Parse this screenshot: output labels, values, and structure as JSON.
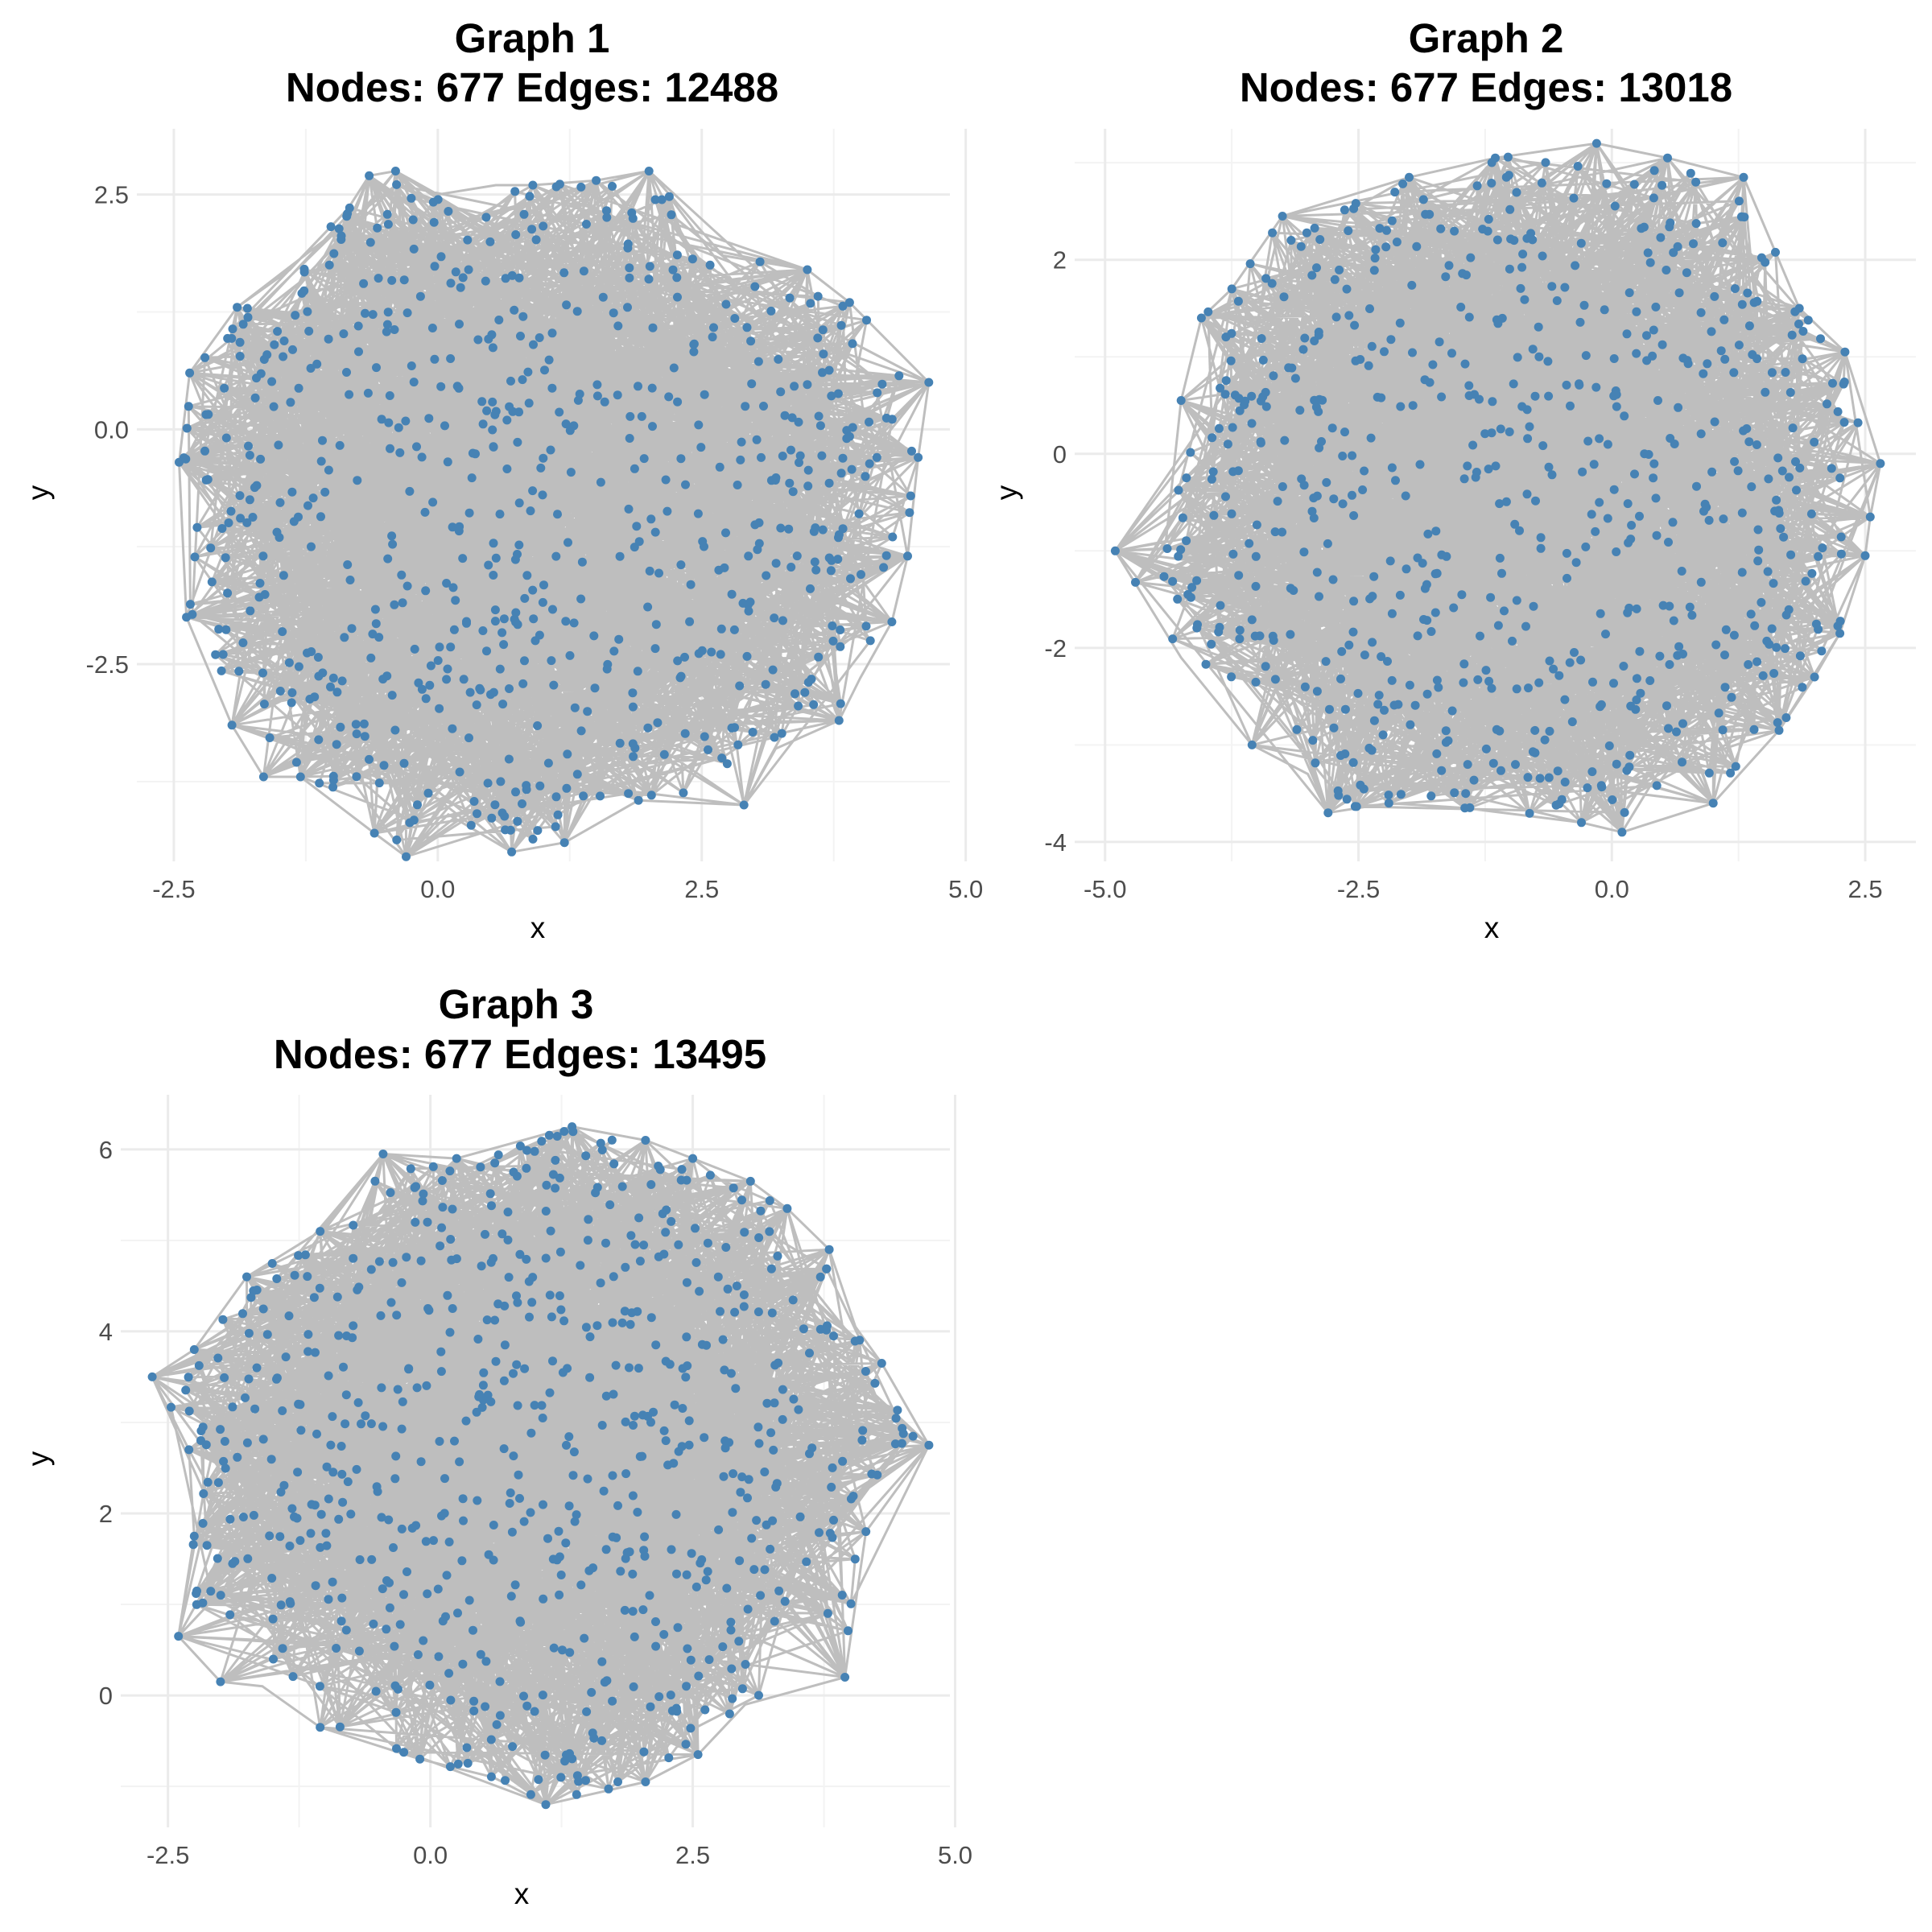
{
  "colors": {
    "edge": "#bebebe",
    "node": "#4682b4",
    "grid_major": "#ebebeb",
    "grid_minor": "#f3f3f3",
    "tick_text": "#4d4d4d",
    "title_text": "#000000"
  },
  "chart_data": [
    {
      "type": "scatter",
      "subtype": "network-graph",
      "title": "Graph 1",
      "subtitle": "Nodes: 677 Edges: 12488",
      "nodes": 677,
      "edges": 12488,
      "xlabel": "x",
      "ylabel": "y",
      "xlim": [
        -2.85,
        4.85
      ],
      "ylim": [
        -4.6,
        3.2
      ],
      "xticks": [
        -2.5,
        0.0,
        2.5,
        5.0
      ],
      "xtick_labels": [
        "-2.5",
        "0.0",
        "2.5",
        "5.0"
      ],
      "yticks": [
        -2.5,
        0.0,
        2.5
      ],
      "ytick_labels": [
        "-2.5",
        "0.0",
        "2.5"
      ],
      "grid": true,
      "hull": [
        [
          -2.45,
          -0.35
        ],
        [
          -2.38,
          -2.0
        ],
        [
          -1.95,
          -3.15
        ],
        [
          -1.65,
          -3.7
        ],
        [
          -1.3,
          -3.7
        ],
        [
          -0.6,
          -4.3
        ],
        [
          -0.3,
          -4.55
        ],
        [
          0.1,
          -4.1
        ],
        [
          0.7,
          -4.5
        ],
        [
          1.2,
          -4.4
        ],
        [
          1.9,
          -3.95
        ],
        [
          2.9,
          -4.0
        ],
        [
          3.2,
          -3.4
        ],
        [
          3.8,
          -3.1
        ],
        [
          4.0,
          -2.65
        ],
        [
          4.3,
          -2.05
        ],
        [
          4.45,
          -1.35
        ],
        [
          4.55,
          -0.3
        ],
        [
          4.65,
          0.5
        ],
        [
          3.9,
          1.35
        ],
        [
          3.5,
          1.7
        ],
        [
          2.7,
          1.85
        ],
        [
          2.0,
          2.75
        ],
        [
          1.5,
          2.65
        ],
        [
          0.9,
          2.6
        ],
        [
          0.55,
          2.6
        ],
        [
          0.0,
          2.5
        ],
        [
          -0.4,
          2.75
        ],
        [
          -0.65,
          2.7
        ],
        [
          -0.85,
          2.35
        ],
        [
          -1.4,
          1.7
        ],
        [
          -1.9,
          1.3
        ],
        [
          -2.35,
          0.6
        ]
      ],
      "extreme_nodes": [
        [
          4.65,
          0.5
        ],
        [
          4.55,
          -0.3
        ],
        [
          4.45,
          -1.35
        ],
        [
          4.3,
          -2.05
        ],
        [
          3.9,
          1.35
        ],
        [
          3.5,
          1.7
        ],
        [
          3.8,
          -3.1
        ],
        [
          -2.45,
          -0.35
        ],
        [
          -2.38,
          -2.0
        ],
        [
          -2.35,
          0.6
        ],
        [
          -1.9,
          1.3
        ],
        [
          -1.95,
          -3.15
        ],
        [
          -1.65,
          -3.7
        ],
        [
          -1.3,
          -3.7
        ],
        [
          -0.6,
          -4.3
        ],
        [
          -0.3,
          -4.55
        ],
        [
          0.7,
          -4.5
        ],
        [
          1.2,
          -4.4
        ],
        [
          1.9,
          -3.95
        ],
        [
          2.9,
          -4.0
        ],
        [
          -0.4,
          2.75
        ],
        [
          -0.65,
          2.7
        ],
        [
          2.0,
          2.75
        ],
        [
          1.5,
          2.65
        ],
        [
          0.9,
          2.6
        ]
      ]
    },
    {
      "type": "scatter",
      "subtype": "network-graph",
      "title": "Graph 2",
      "subtitle": "Nodes: 677 Edges: 13018",
      "nodes": 677,
      "edges": 13018,
      "xlabel": "x",
      "ylabel": "y",
      "xlim": [
        -5.3,
        3.0
      ],
      "ylim": [
        -4.2,
        3.35
      ],
      "xticks": [
        -5.0,
        -2.5,
        0.0,
        2.5
      ],
      "xtick_labels": [
        "-5.0",
        "-2.5",
        "0.0",
        "2.5"
      ],
      "yticks": [
        -4,
        -2,
        0,
        2
      ],
      "ytick_labels": [
        "-4",
        "-2",
        "0",
        "2"
      ],
      "grid": true,
      "hull": [
        [
          -4.9,
          -1.0
        ],
        [
          -4.25,
          -2.1
        ],
        [
          -3.55,
          -3.0
        ],
        [
          -3.0,
          -3.3
        ],
        [
          -2.8,
          -3.7
        ],
        [
          -2.2,
          -3.6
        ],
        [
          -1.45,
          -3.65
        ],
        [
          -0.3,
          -3.8
        ],
        [
          0.1,
          -3.9
        ],
        [
          1.0,
          -3.6
        ],
        [
          1.65,
          -2.85
        ],
        [
          2.0,
          -2.3
        ],
        [
          2.25,
          -1.85
        ],
        [
          2.5,
          -1.05
        ],
        [
          2.55,
          -0.65
        ],
        [
          2.65,
          -0.1
        ],
        [
          2.3,
          1.05
        ],
        [
          1.85,
          1.5
        ],
        [
          1.3,
          2.85
        ],
        [
          0.55,
          3.05
        ],
        [
          -0.15,
          3.2
        ],
        [
          -1.15,
          3.05
        ],
        [
          -2.0,
          2.85
        ],
        [
          -3.25,
          2.45
        ],
        [
          -3.75,
          1.7
        ],
        [
          -4.05,
          1.4
        ],
        [
          -4.25,
          0.55
        ],
        [
          -4.4,
          -0.9
        ]
      ],
      "extreme_nodes": [
        [
          -4.9,
          -1.0
        ],
        [
          -4.25,
          0.55
        ],
        [
          -3.75,
          1.7
        ],
        [
          -3.25,
          2.45
        ],
        [
          -2.0,
          2.85
        ],
        [
          -1.15,
          3.05
        ],
        [
          -0.15,
          3.2
        ],
        [
          0.55,
          3.05
        ],
        [
          1.3,
          2.85
        ],
        [
          1.85,
          1.5
        ],
        [
          2.3,
          1.05
        ],
        [
          2.65,
          -0.1
        ],
        [
          2.55,
          -0.65
        ],
        [
          2.5,
          -1.05
        ],
        [
          2.25,
          -1.85
        ],
        [
          2.0,
          -2.3
        ],
        [
          1.65,
          -2.85
        ],
        [
          1.0,
          -3.6
        ],
        [
          0.1,
          -3.9
        ],
        [
          -0.3,
          -3.8
        ],
        [
          -1.45,
          -3.65
        ],
        [
          -2.2,
          -3.6
        ],
        [
          -2.8,
          -3.7
        ],
        [
          -3.55,
          -3.0
        ],
        [
          -4.05,
          1.4
        ]
      ]
    },
    {
      "type": "scatter",
      "subtype": "network-graph",
      "title": "Graph 3",
      "subtitle": "Nodes: 677 Edges: 13495",
      "nodes": 677,
      "edges": 13495,
      "xlabel": "x",
      "ylabel": "y",
      "xlim": [
        -2.95,
        4.95
      ],
      "ylim": [
        -1.45,
        6.6
      ],
      "xticks": [
        -2.5,
        0.0,
        2.5,
        5.0
      ],
      "xtick_labels": [
        "-2.5",
        "0.0",
        "2.5",
        "5.0"
      ],
      "yticks": [
        0,
        2,
        4,
        6
      ],
      "ytick_labels": [
        "0",
        "2",
        "4",
        "6"
      ],
      "grid": true,
      "hull": [
        [
          -2.65,
          3.5
        ],
        [
          -2.3,
          2.7
        ],
        [
          -2.25,
          1.75
        ],
        [
          -2.4,
          0.65
        ],
        [
          -2.0,
          0.15
        ],
        [
          -1.6,
          0.1
        ],
        [
          -1.05,
          -0.35
        ],
        [
          -0.1,
          -0.7
        ],
        [
          0.6,
          -0.9
        ],
        [
          1.1,
          -1.2
        ],
        [
          2.05,
          -0.95
        ],
        [
          2.55,
          -0.65
        ],
        [
          3.0,
          -0.1
        ],
        [
          3.95,
          0.2
        ],
        [
          4.15,
          1.8
        ],
        [
          4.75,
          2.75
        ],
        [
          4.3,
          3.65
        ],
        [
          4.05,
          4.05
        ],
        [
          3.8,
          4.9
        ],
        [
          3.4,
          5.35
        ],
        [
          3.05,
          5.65
        ],
        [
          2.5,
          5.9
        ],
        [
          2.05,
          6.1
        ],
        [
          1.35,
          6.25
        ],
        [
          0.25,
          5.9
        ],
        [
          -0.45,
          5.95
        ],
        [
          -1.05,
          5.1
        ],
        [
          -1.75,
          4.6
        ],
        [
          -2.25,
          3.8
        ]
      ],
      "extreme_nodes": [
        [
          -2.65,
          3.5
        ],
        [
          -2.4,
          0.65
        ],
        [
          -2.25,
          1.75
        ],
        [
          -2.3,
          2.7
        ],
        [
          -2.25,
          3.8
        ],
        [
          -2.0,
          0.15
        ],
        [
          -1.75,
          4.6
        ],
        [
          -1.05,
          5.1
        ],
        [
          -1.05,
          -0.35
        ],
        [
          -0.45,
          5.95
        ],
        [
          -0.1,
          -0.7
        ],
        [
          0.25,
          5.9
        ],
        [
          1.1,
          -1.2
        ],
        [
          1.35,
          6.25
        ],
        [
          2.05,
          6.1
        ],
        [
          2.05,
          -0.95
        ],
        [
          2.5,
          5.9
        ],
        [
          2.55,
          -0.65
        ],
        [
          3.05,
          5.65
        ],
        [
          3.8,
          4.9
        ],
        [
          3.95,
          0.2
        ],
        [
          4.15,
          1.8
        ],
        [
          4.3,
          3.65
        ],
        [
          4.75,
          2.75
        ],
        [
          3.4,
          5.35
        ]
      ]
    }
  ]
}
